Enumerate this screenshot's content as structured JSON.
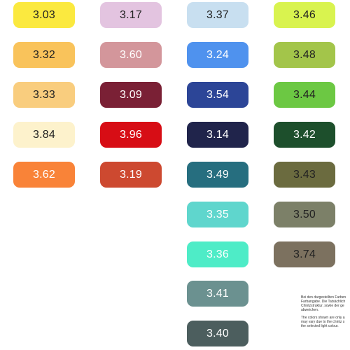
{
  "swatches": [
    {
      "label": "3.03",
      "color": "#fbe93f",
      "text_color": "#222222"
    },
    {
      "label": "3.32",
      "color": "#f9c35b",
      "text_color": "#222222"
    },
    {
      "label": "3.33",
      "color": "#f9cd7e",
      "text_color": "#222222"
    },
    {
      "label": "3.84",
      "color": "#fdf2cc",
      "text_color": "#222222"
    },
    {
      "label": "3.62",
      "color": "#f98338",
      "text_color": "#ffffff"
    },
    {
      "label": "3.17",
      "color": "#e3c4e0",
      "text_color": "#222222"
    },
    {
      "label": "3.60",
      "color": "#d3969b",
      "text_color": "#ffffff"
    },
    {
      "label": "3.09",
      "color": "#7a2035",
      "text_color": "#ffffff"
    },
    {
      "label": "3.96",
      "color": "#d70d15",
      "text_color": "#ffffff"
    },
    {
      "label": "3.19",
      "color": "#cd4930",
      "text_color": "#ffffff"
    },
    {
      "label": "3.37",
      "color": "#c8dff0",
      "text_color": "#222222"
    },
    {
      "label": "3.24",
      "color": "#4f92ee",
      "text_color": "#ffffff"
    },
    {
      "label": "3.54",
      "color": "#2c4597",
      "text_color": "#ffffff"
    },
    {
      "label": "3.14",
      "color": "#20244b",
      "text_color": "#ffffff"
    },
    {
      "label": "3.49",
      "color": "#266e7f",
      "text_color": "#ffffff"
    },
    {
      "label": "3.35",
      "color": "#5fd6cd",
      "text_color": "#ffffff"
    },
    {
      "label": "3.36",
      "color": "#4eecc7",
      "text_color": "#ffffff"
    },
    {
      "label": "3.41",
      "color": "#6b9190",
      "text_color": "#ffffff"
    },
    {
      "label": "3.40",
      "color": "#4c5e5e",
      "text_color": "#ffffff"
    },
    {
      "label": "3.46",
      "color": "#d9f34f",
      "text_color": "#222222"
    },
    {
      "label": "3.48",
      "color": "#a3c54a",
      "text_color": "#222222"
    },
    {
      "label": "3.44",
      "color": "#6cc843",
      "text_color": "#222222"
    },
    {
      "label": "3.42",
      "color": "#1d4f2c",
      "text_color": "#ffffff"
    },
    {
      "label": "3.43",
      "color": "#6b6b3f",
      "text_color": "#222222"
    },
    {
      "label": "3.50",
      "color": "#7c8068",
      "text_color": "#222222"
    },
    {
      "label": "3.74",
      "color": "#7c715f",
      "text_color": "#222222"
    }
  ],
  "note": {
    "de_lines": [
      "Bei den dargestellten Farben",
      "Farbangabe. Die Tatsächlich",
      "Chintzstruktur, sowie der ge",
      "abweichen."
    ],
    "en_lines": [
      "The colors shown are only a",
      "may vary due to the chintz s",
      "the selected light colour."
    ]
  }
}
